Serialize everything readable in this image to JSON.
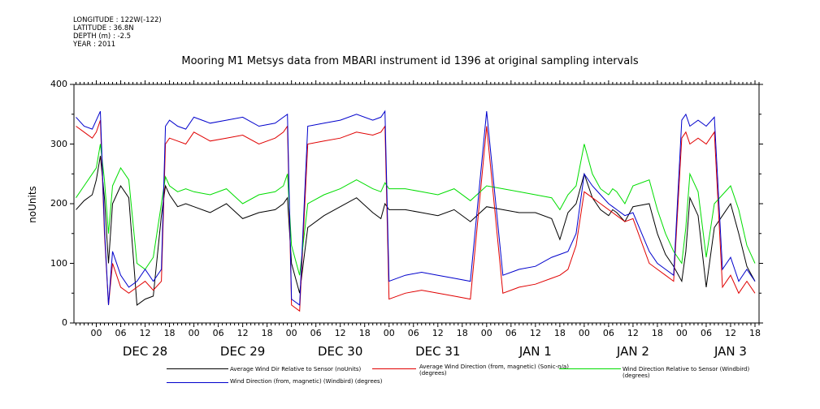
{
  "meta_lines": [
    "LONGITUDE : 122W(-122)",
    "LATITUDE : 36.8N",
    "DEPTH (m) : -2.5",
    "YEAR : 2011"
  ],
  "chart_data": {
    "type": "line",
    "title": "Mooring M1 Metsys data from MBARI instrument id 1396 at original sampling intervals",
    "ylabel": "noUnits",
    "ylim": [
      0,
      400
    ],
    "yticks": [
      0,
      100,
      200,
      300,
      400
    ],
    "x_unit": "hours since 2011-12-28 00:00",
    "xlim": [
      -5.5,
      163
    ],
    "x_hour_labels": [
      "00",
      "06",
      "12",
      "18",
      "00",
      "06",
      "12",
      "18",
      "00",
      "06",
      "12",
      "18",
      "00",
      "06",
      "12",
      "18",
      "00",
      "06",
      "12",
      "18",
      "00",
      "06",
      "12",
      "18",
      "00",
      "06",
      "12",
      "18"
    ],
    "day_labels": [
      "DEC 28",
      "DEC 29",
      "DEC 30",
      "DEC 31",
      "JAN  1",
      "JAN  2",
      "JAN  3"
    ],
    "colors": {
      "black": "#000000",
      "red": "#e00000",
      "green": "#00dd00",
      "blue": "#0000cc"
    },
    "series": [
      {
        "name": "Average Wind Dir Relative to Sensor (noUnits)",
        "color": "#000000",
        "x": [
          -5,
          -3,
          -1,
          0,
          1,
          2,
          3,
          4,
          6,
          8,
          10,
          12,
          14,
          16,
          17,
          18,
          20,
          22,
          24,
          28,
          32,
          36,
          40,
          44,
          46,
          47,
          48,
          50,
          52,
          56,
          60,
          64,
          68,
          70,
          71,
          72,
          76,
          80,
          84,
          88,
          92,
          96,
          100,
          104,
          108,
          112,
          114,
          116,
          118,
          120,
          122,
          124,
          126,
          127,
          128,
          130,
          132,
          136,
          138,
          140,
          142,
          144,
          145,
          146,
          148,
          150,
          152,
          154,
          156,
          158,
          160,
          162
        ],
        "y": [
          190,
          205,
          215,
          240,
          280,
          210,
          100,
          200,
          230,
          210,
          30,
          40,
          45,
          180,
          230,
          215,
          195,
          200,
          195,
          185,
          200,
          175,
          185,
          190,
          200,
          210,
          100,
          50,
          160,
          180,
          195,
          210,
          185,
          175,
          200,
          190,
          190,
          185,
          180,
          190,
          170,
          195,
          190,
          185,
          185,
          175,
          140,
          185,
          200,
          250,
          210,
          190,
          180,
          190,
          185,
          170,
          195,
          200,
          150,
          115,
          95,
          70,
          120,
          210,
          180,
          60,
          160,
          180,
          200,
          150,
          95,
          70
        ]
      },
      {
        "name": "Average Wind Direction (from, magnetic) (Sonic-n/a) (degrees)",
        "color": "#e00000",
        "x": [
          -5,
          -3,
          -1,
          0,
          1,
          2,
          3,
          4,
          6,
          8,
          10,
          12,
          14,
          16,
          17,
          18,
          20,
          22,
          24,
          28,
          32,
          36,
          40,
          44,
          46,
          47,
          48,
          50,
          52,
          56,
          60,
          64,
          68,
          70,
          71,
          72,
          76,
          80,
          84,
          88,
          92,
          96,
          100,
          104,
          108,
          112,
          114,
          116,
          118,
          120,
          122,
          124,
          126,
          127,
          128,
          130,
          132,
          136,
          138,
          140,
          142,
          144,
          145,
          146,
          148,
          150,
          152,
          154,
          156,
          158,
          160,
          162
        ],
        "y": [
          330,
          320,
          310,
          320,
          340,
          150,
          30,
          100,
          60,
          50,
          60,
          70,
          55,
          70,
          300,
          310,
          305,
          300,
          320,
          305,
          310,
          315,
          300,
          310,
          320,
          330,
          30,
          20,
          300,
          305,
          310,
          320,
          315,
          320,
          330,
          40,
          50,
          55,
          50,
          45,
          40,
          330,
          50,
          60,
          65,
          75,
          80,
          90,
          130,
          220,
          210,
          200,
          190,
          185,
          180,
          170,
          175,
          100,
          90,
          80,
          70,
          310,
          320,
          300,
          310,
          300,
          320,
          60,
          80,
          50,
          70,
          50
        ]
      },
      {
        "name": "Wind Direction Relative to Sensor (Windbird) (degrees)",
        "color": "#00dd00",
        "x": [
          -5,
          -3,
          -1,
          0,
          1,
          2,
          3,
          4,
          6,
          8,
          10,
          12,
          14,
          16,
          17,
          18,
          20,
          22,
          24,
          28,
          32,
          36,
          40,
          44,
          46,
          47,
          48,
          50,
          52,
          56,
          60,
          64,
          68,
          70,
          71,
          72,
          76,
          80,
          84,
          88,
          92,
          96,
          100,
          104,
          108,
          112,
          114,
          116,
          118,
          120,
          122,
          124,
          126,
          127,
          128,
          130,
          132,
          136,
          138,
          140,
          142,
          144,
          145,
          146,
          148,
          150,
          152,
          154,
          156,
          158,
          160,
          162
        ],
        "y": [
          210,
          230,
          250,
          260,
          300,
          240,
          150,
          230,
          260,
          240,
          100,
          90,
          110,
          200,
          245,
          230,
          220,
          225,
          220,
          215,
          225,
          200,
          215,
          220,
          230,
          250,
          130,
          80,
          200,
          215,
          225,
          240,
          225,
          220,
          235,
          225,
          225,
          220,
          215,
          225,
          205,
          230,
          225,
          220,
          215,
          210,
          190,
          215,
          230,
          300,
          250,
          225,
          215,
          225,
          220,
          200,
          230,
          240,
          190,
          150,
          120,
          100,
          160,
          250,
          220,
          110,
          200,
          215,
          230,
          190,
          130,
          100
        ]
      },
      {
        "name": "Wind Direction (from, magnetic) (Windbird) (degrees)",
        "color": "#0000cc",
        "x": [
          -5,
          -3,
          -1,
          0,
          1,
          2,
          3,
          4,
          6,
          8,
          10,
          12,
          14,
          16,
          17,
          18,
          20,
          22,
          24,
          28,
          32,
          36,
          40,
          44,
          46,
          47,
          48,
          50,
          52,
          56,
          60,
          64,
          68,
          70,
          71,
          72,
          76,
          80,
          84,
          88,
          92,
          96,
          100,
          104,
          108,
          112,
          114,
          116,
          118,
          120,
          122,
          124,
          126,
          127,
          128,
          130,
          132,
          136,
          138,
          140,
          142,
          144,
          145,
          146,
          148,
          150,
          152,
          154,
          156,
          158,
          160,
          162
        ],
        "y": [
          345,
          330,
          325,
          340,
          355,
          160,
          30,
          120,
          80,
          60,
          70,
          90,
          70,
          90,
          330,
          340,
          330,
          325,
          345,
          335,
          340,
          345,
          330,
          335,
          345,
          350,
          40,
          30,
          330,
          335,
          340,
          350,
          340,
          345,
          355,
          70,
          80,
          85,
          80,
          75,
          70,
          355,
          80,
          90,
          95,
          110,
          115,
          120,
          150,
          250,
          230,
          215,
          200,
          195,
          190,
          180,
          185,
          120,
          100,
          90,
          80,
          340,
          350,
          330,
          340,
          330,
          345,
          90,
          110,
          70,
          90,
          70
        ]
      }
    ]
  }
}
